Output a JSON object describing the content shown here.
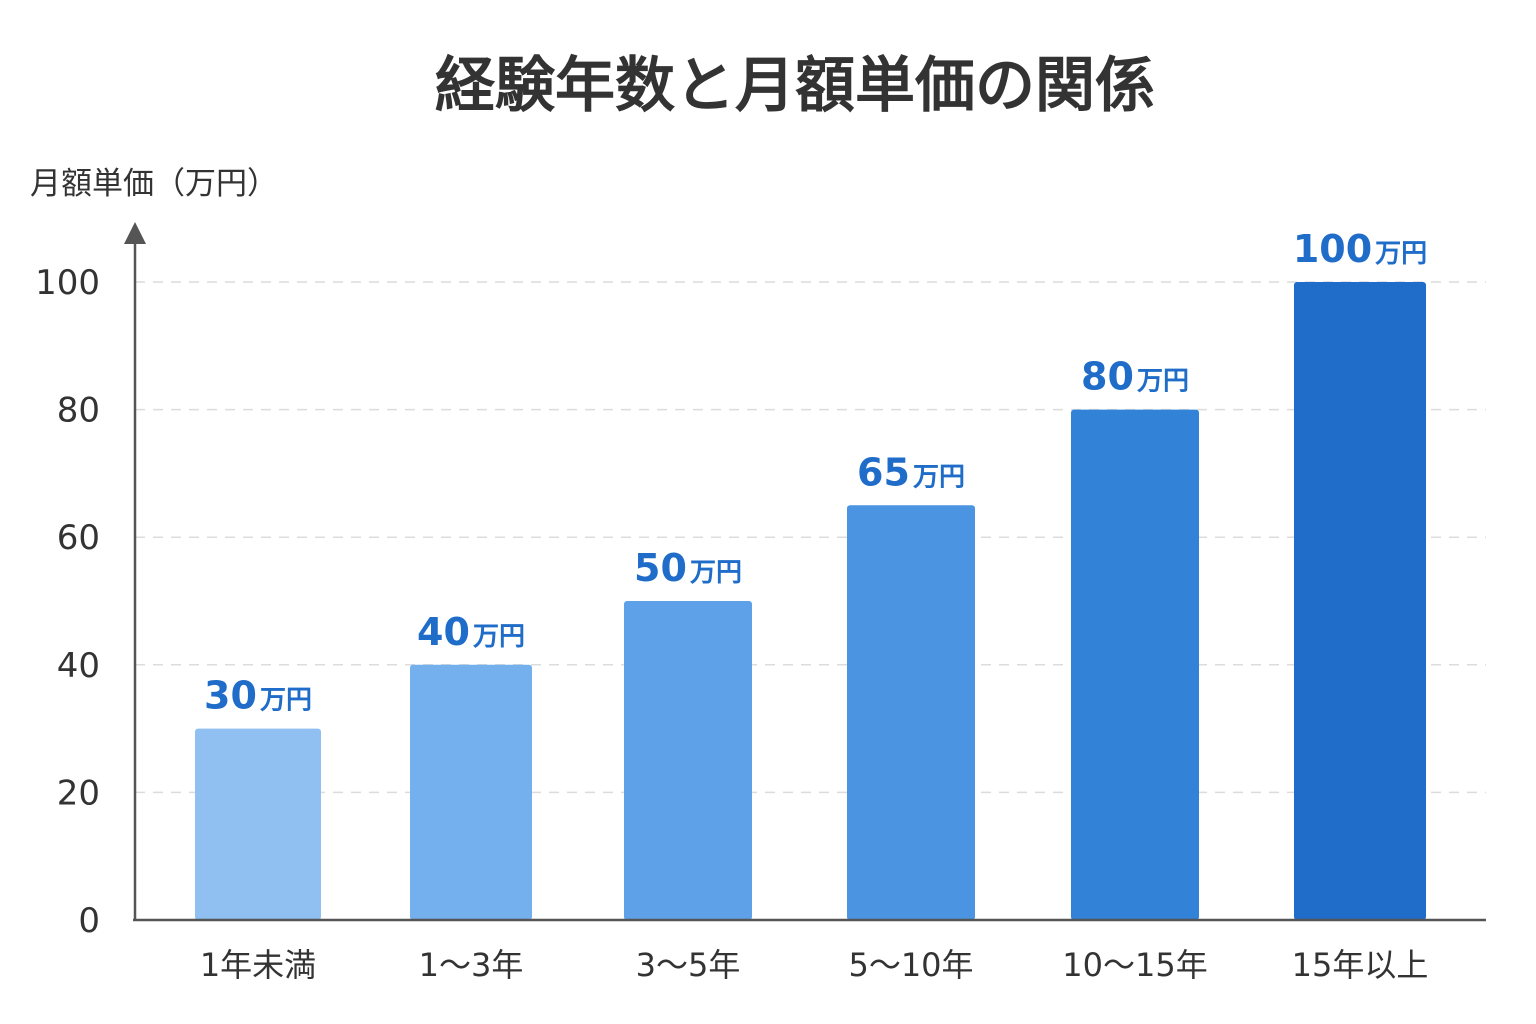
{
  "chart_data": {
    "type": "bar",
    "title": "経験年数と月額単価の関係",
    "ylabel": "月額単価（万円）",
    "xlabel": "",
    "categories": [
      "1年未満",
      "1～3年",
      "3～5年",
      "5～10年",
      "10～15年",
      "15年以上"
    ],
    "values": [
      30,
      40,
      50,
      65,
      80,
      100
    ],
    "value_labels": [
      "30",
      "40",
      "50",
      "65",
      "80",
      "100"
    ],
    "value_unit": "万円",
    "ylim": [
      0,
      100
    ],
    "yticks": [
      "0",
      "20",
      "40",
      "60",
      "80",
      "100"
    ],
    "grid": true,
    "bar_colors": [
      "#8fc0f1",
      "#74b0ee",
      "#5fa1e8",
      "#4a94e2",
      "#3282d8",
      "#1f6dc9"
    ],
    "label_color": "#1f6dc9"
  }
}
